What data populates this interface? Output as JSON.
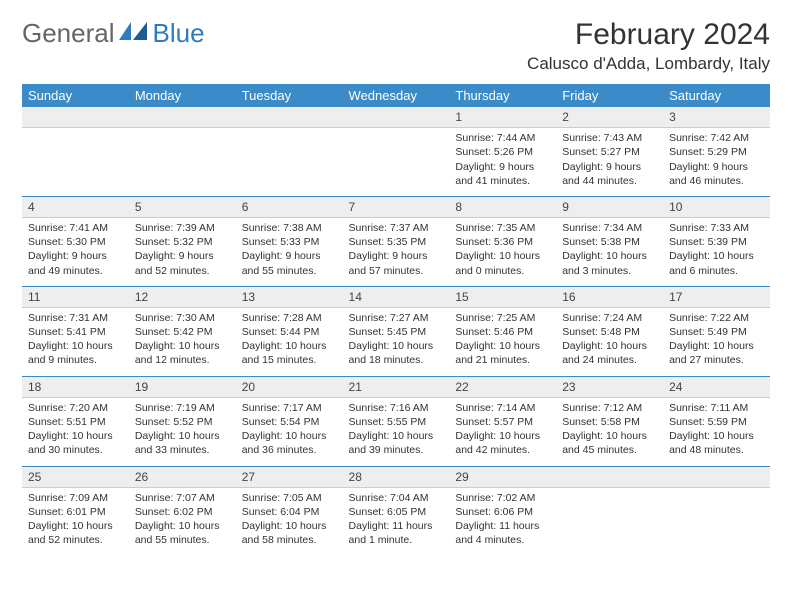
{
  "logo": {
    "word1": "General",
    "word2": "Blue"
  },
  "title": "February 2024",
  "location": "Calusco d'Adda, Lombardy, Italy",
  "colors": {
    "header_bg": "#3b8bc9",
    "header_text": "#ffffff",
    "border": "#3b8bc9",
    "daynum_bg": "#eeeeee",
    "daynum_border": "#cccccc",
    "logo_blue": "#2f7bbf",
    "logo_gray": "#666666",
    "text": "#333333",
    "background": "#ffffff"
  },
  "typography": {
    "title_fontsize": 30,
    "location_fontsize": 17,
    "logo_fontsize": 26,
    "dayheader_fontsize": 13,
    "daynum_fontsize": 12,
    "cell_fontsize": 10.5
  },
  "day_headers": [
    "Sunday",
    "Monday",
    "Tuesday",
    "Wednesday",
    "Thursday",
    "Friday",
    "Saturday"
  ],
  "weeks": [
    {
      "dates": [
        "",
        "",
        "",
        "",
        "1",
        "2",
        "3"
      ],
      "cells": [
        null,
        null,
        null,
        null,
        {
          "sunrise": "7:44 AM",
          "sunset": "5:26 PM",
          "daylight": "9 hours and 41 minutes."
        },
        {
          "sunrise": "7:43 AM",
          "sunset": "5:27 PM",
          "daylight": "9 hours and 44 minutes."
        },
        {
          "sunrise": "7:42 AM",
          "sunset": "5:29 PM",
          "daylight": "9 hours and 46 minutes."
        }
      ]
    },
    {
      "dates": [
        "4",
        "5",
        "6",
        "7",
        "8",
        "9",
        "10"
      ],
      "cells": [
        {
          "sunrise": "7:41 AM",
          "sunset": "5:30 PM",
          "daylight": "9 hours and 49 minutes."
        },
        {
          "sunrise": "7:39 AM",
          "sunset": "5:32 PM",
          "daylight": "9 hours and 52 minutes."
        },
        {
          "sunrise": "7:38 AM",
          "sunset": "5:33 PM",
          "daylight": "9 hours and 55 minutes."
        },
        {
          "sunrise": "7:37 AM",
          "sunset": "5:35 PM",
          "daylight": "9 hours and 57 minutes."
        },
        {
          "sunrise": "7:35 AM",
          "sunset": "5:36 PM",
          "daylight": "10 hours and 0 minutes."
        },
        {
          "sunrise": "7:34 AM",
          "sunset": "5:38 PM",
          "daylight": "10 hours and 3 minutes."
        },
        {
          "sunrise": "7:33 AM",
          "sunset": "5:39 PM",
          "daylight": "10 hours and 6 minutes."
        }
      ]
    },
    {
      "dates": [
        "11",
        "12",
        "13",
        "14",
        "15",
        "16",
        "17"
      ],
      "cells": [
        {
          "sunrise": "7:31 AM",
          "sunset": "5:41 PM",
          "daylight": "10 hours and 9 minutes."
        },
        {
          "sunrise": "7:30 AM",
          "sunset": "5:42 PM",
          "daylight": "10 hours and 12 minutes."
        },
        {
          "sunrise": "7:28 AM",
          "sunset": "5:44 PM",
          "daylight": "10 hours and 15 minutes."
        },
        {
          "sunrise": "7:27 AM",
          "sunset": "5:45 PM",
          "daylight": "10 hours and 18 minutes."
        },
        {
          "sunrise": "7:25 AM",
          "sunset": "5:46 PM",
          "daylight": "10 hours and 21 minutes."
        },
        {
          "sunrise": "7:24 AM",
          "sunset": "5:48 PM",
          "daylight": "10 hours and 24 minutes."
        },
        {
          "sunrise": "7:22 AM",
          "sunset": "5:49 PM",
          "daylight": "10 hours and 27 minutes."
        }
      ]
    },
    {
      "dates": [
        "18",
        "19",
        "20",
        "21",
        "22",
        "23",
        "24"
      ],
      "cells": [
        {
          "sunrise": "7:20 AM",
          "sunset": "5:51 PM",
          "daylight": "10 hours and 30 minutes."
        },
        {
          "sunrise": "7:19 AM",
          "sunset": "5:52 PM",
          "daylight": "10 hours and 33 minutes."
        },
        {
          "sunrise": "7:17 AM",
          "sunset": "5:54 PM",
          "daylight": "10 hours and 36 minutes."
        },
        {
          "sunrise": "7:16 AM",
          "sunset": "5:55 PM",
          "daylight": "10 hours and 39 minutes."
        },
        {
          "sunrise": "7:14 AM",
          "sunset": "5:57 PM",
          "daylight": "10 hours and 42 minutes."
        },
        {
          "sunrise": "7:12 AM",
          "sunset": "5:58 PM",
          "daylight": "10 hours and 45 minutes."
        },
        {
          "sunrise": "7:11 AM",
          "sunset": "5:59 PM",
          "daylight": "10 hours and 48 minutes."
        }
      ]
    },
    {
      "dates": [
        "25",
        "26",
        "27",
        "28",
        "29",
        "",
        ""
      ],
      "cells": [
        {
          "sunrise": "7:09 AM",
          "sunset": "6:01 PM",
          "daylight": "10 hours and 52 minutes."
        },
        {
          "sunrise": "7:07 AM",
          "sunset": "6:02 PM",
          "daylight": "10 hours and 55 minutes."
        },
        {
          "sunrise": "7:05 AM",
          "sunset": "6:04 PM",
          "daylight": "10 hours and 58 minutes."
        },
        {
          "sunrise": "7:04 AM",
          "sunset": "6:05 PM",
          "daylight": "11 hours and 1 minute."
        },
        {
          "sunrise": "7:02 AM",
          "sunset": "6:06 PM",
          "daylight": "11 hours and 4 minutes."
        },
        null,
        null
      ]
    }
  ],
  "labels": {
    "sunrise": "Sunrise:",
    "sunset": "Sunset:",
    "daylight": "Daylight:"
  }
}
